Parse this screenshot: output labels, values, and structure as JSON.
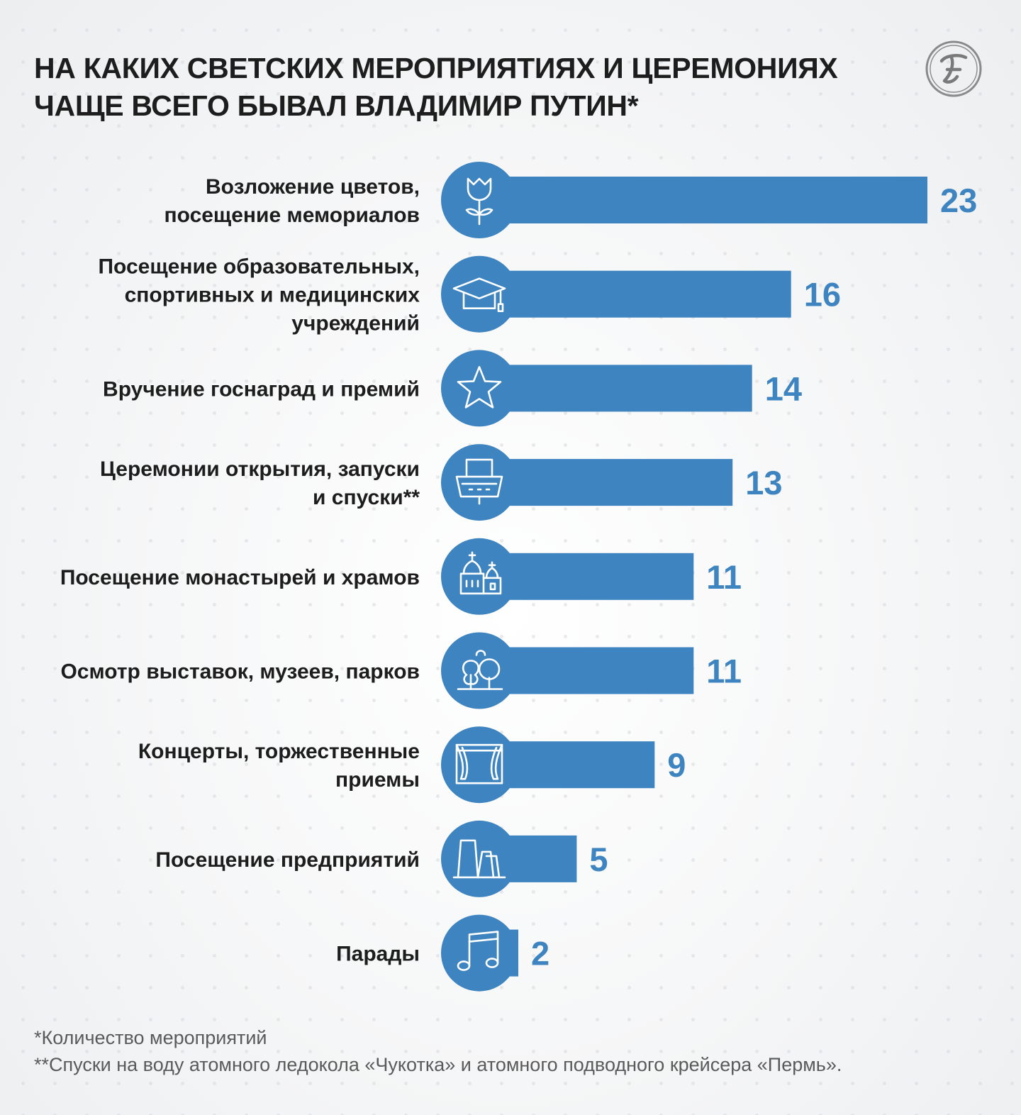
{
  "title_lines": [
    "НА КАКИХ СВЕТСКИХ МЕРОПРИЯТИЯХ И ЦЕРЕМОНИЯХ",
    "ЧАЩЕ ВСЕГО БЫВАЛ ВЛАДИМИР ПУТИН*"
  ],
  "logo_letter": "𝒯",
  "footnotes": [
    "*Количество мероприятий",
    "**Спуски на воду атомного ледокола «Чукотка» и атомного подводного крейсера «Пермь»."
  ],
  "colors": {
    "accent": "#3d84c0",
    "text": "#1d1d1d",
    "muted": "#5a5a5a"
  },
  "chart_data": {
    "type": "bar",
    "orientation": "horizontal",
    "title": "НА КАКИХ СВЕТСКИХ МЕРОПРИЯТИЯХ И ЦЕРЕМОНИЯХ ЧАЩЕ ВСЕГО БЫВАЛ ВЛАДИМИР ПУТИН*",
    "categories": [
      [
        "Возложение цветов,",
        "посещение мемориалов"
      ],
      [
        "Посещение образовательных,",
        "спортивных и медицинских",
        "учреждений"
      ],
      [
        "Вручение госнаград и премий"
      ],
      [
        "Церемонии открытия, запуски",
        "и спуски**"
      ],
      [
        "Посещение монастырей и храмов"
      ],
      [
        "Осмотр выставок, музеев, парков"
      ],
      [
        "Концерты, торжественные",
        "приемы"
      ],
      [
        "Посещение предприятий"
      ],
      [
        "Парады"
      ]
    ],
    "values": [
      23,
      16,
      14,
      13,
      11,
      11,
      9,
      5,
      2
    ],
    "icons": [
      "flower-icon",
      "graduation-cap-icon",
      "star-icon",
      "ship-icon",
      "church-icon",
      "trees-icon",
      "stage-curtain-icon",
      "factory-icon",
      "music-note-icon"
    ],
    "xlim": [
      0,
      23
    ],
    "grid": false,
    "legend": "none"
  }
}
